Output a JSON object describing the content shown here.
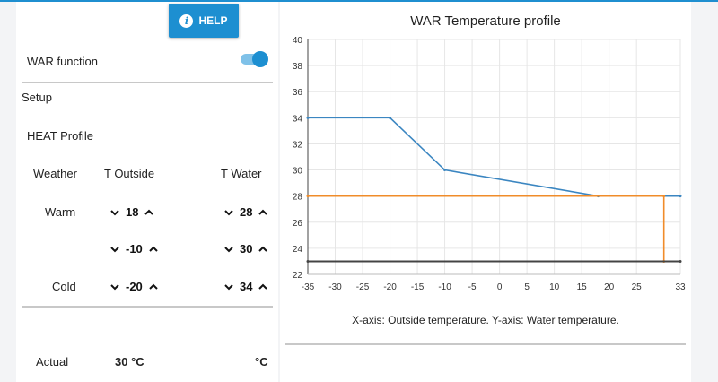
{
  "help_button": {
    "label": "HELP",
    "icon": "info-icon"
  },
  "war": {
    "label": "WAR function",
    "enabled": true
  },
  "setup": {
    "label": "Setup"
  },
  "profile": {
    "label": "HEAT Profile"
  },
  "table": {
    "col_weather": "Weather",
    "col_outside": "T Outside",
    "col_water": "T Water",
    "rows": [
      {
        "weather": "Warm",
        "outside": "18",
        "water": "28"
      },
      {
        "weather": "",
        "outside": "-10",
        "water": "30"
      },
      {
        "weather": "Cold",
        "outside": "-20",
        "water": "34"
      }
    ]
  },
  "actual": {
    "label": "Actual",
    "value": "30 °C",
    "unit": "°C"
  },
  "chart_data": {
    "type": "line",
    "title": "WAR Temperature profile",
    "caption": "X-axis: Outside temperature. Y-axis: Water temperature.",
    "xlim": [
      -35,
      33
    ],
    "ylim": [
      22,
      40
    ],
    "xticks": [
      -35,
      -30,
      -25,
      -20,
      -15,
      -10,
      -5,
      0,
      5,
      10,
      15,
      20,
      25,
      33
    ],
    "yticks": [
      22,
      24,
      26,
      28,
      30,
      32,
      34,
      36,
      38,
      40
    ],
    "grid": true,
    "series": [
      {
        "color": "#3b86c1",
        "x": [
          -35,
          -20,
          -10,
          18,
          33
        ],
        "y": [
          34,
          34,
          30,
          28,
          28
        ]
      },
      {
        "color": "#f08c2a",
        "x": [
          -35,
          30,
          30
        ],
        "y": [
          28,
          28,
          23
        ]
      },
      {
        "color": "#444444",
        "x": [
          -35,
          33
        ],
        "y": [
          23,
          23
        ]
      }
    ]
  }
}
